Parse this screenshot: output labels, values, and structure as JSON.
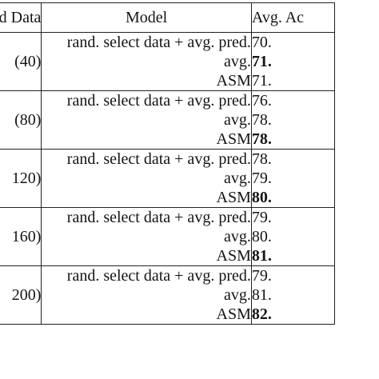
{
  "header": {
    "data_label": "ed Data",
    "model_label": "Model",
    "acc_label": "Avg. Ac"
  },
  "groups": [
    {
      "data": "(40)",
      "models": [
        "rand. select data + avg. pred.",
        "avg.",
        "ASM"
      ],
      "accs": [
        "70.",
        "71.",
        "71."
      ],
      "bold_index": 1
    },
    {
      "data": "(80)",
      "models": [
        "rand. select data + avg. pred.",
        "avg.",
        "ASM"
      ],
      "accs": [
        "76.",
        "78.",
        "78."
      ],
      "bold_index": 2
    },
    {
      "data": "120)",
      "models": [
        "rand. select data + avg. pred.",
        "avg.",
        "ASM"
      ],
      "accs": [
        "78.",
        "79.",
        "80."
      ],
      "bold_index": 2
    },
    {
      "data": "160)",
      "models": [
        "rand. select data + avg. pred.",
        "avg.",
        "ASM"
      ],
      "accs": [
        "79.",
        "80.",
        "81."
      ],
      "bold_index": 2
    },
    {
      "data": "200)",
      "models": [
        "rand. select data + avg. pred.",
        "avg.",
        "ASM"
      ],
      "accs": [
        "79.",
        "81.",
        "82."
      ],
      "bold_index": 2
    }
  ]
}
